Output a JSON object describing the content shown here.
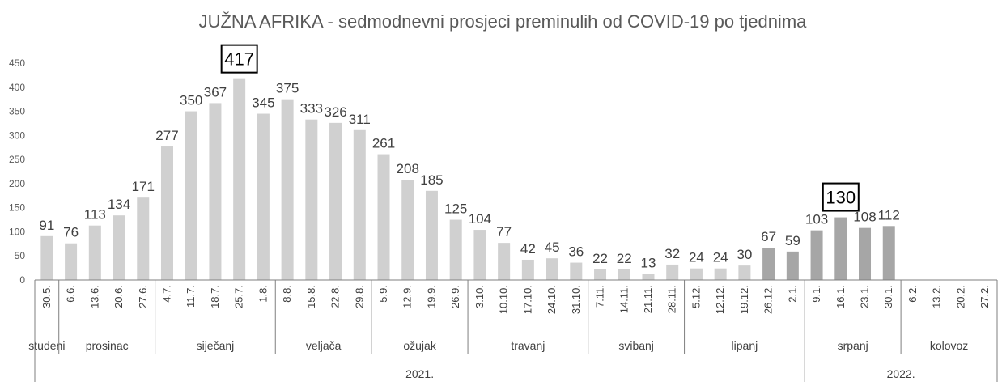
{
  "chart_data": {
    "type": "bar",
    "title": "JUŽNA AFRIKA - sedmodnevni prosjeci preminulih od COVID-19 po tjednima",
    "ylim": [
      0,
      450
    ],
    "yticks": [
      0,
      50,
      100,
      150,
      200,
      250,
      300,
      350,
      400,
      450
    ],
    "grid": false,
    "categories": [
      "30.5.",
      "6.6.",
      "13.6.",
      "20.6.",
      "27.6.",
      "4.7.",
      "11.7.",
      "18.7.",
      "25.7.",
      "1.8.",
      "8.8.",
      "15.8.",
      "22.8.",
      "29.8.",
      "5.9.",
      "12.9.",
      "19.9.",
      "26.9.",
      "3.10.",
      "10.10.",
      "17.10.",
      "24.10.",
      "31.10.",
      "7.11.",
      "14.11.",
      "21.11.",
      "28.11.",
      "5.12.",
      "12.12.",
      "19.12.",
      "26.12.",
      "2.1.",
      "9.1.",
      "16.1.",
      "23.1.",
      "30.1.",
      "6.2.",
      "13.2.",
      "20.2.",
      "27.2."
    ],
    "values": [
      91,
      76,
      113,
      134,
      171,
      277,
      350,
      367,
      417,
      345,
      375,
      333,
      326,
      311,
      261,
      208,
      185,
      125,
      104,
      77,
      42,
      45,
      36,
      22,
      22,
      13,
      32,
      24,
      24,
      30,
      67,
      59,
      103,
      130,
      108,
      112,
      null,
      null,
      null,
      null
    ],
    "highlighted": [
      8,
      33
    ],
    "colors": {
      "bar_light": "#d0d0d0",
      "bar_dark": "#a6a6a6",
      "axis": "#7f7f7f",
      "text": "#404040"
    },
    "dark_from_index": 30,
    "months": [
      {
        "label": "studeni",
        "start": 0,
        "end": 1
      },
      {
        "label": "prosinac",
        "start": 1,
        "end": 5
      },
      {
        "label": "siječanj",
        "start": 5,
        "end": 10
      },
      {
        "label": "veljača",
        "start": 10,
        "end": 14
      },
      {
        "label": "ožujak",
        "start": 14,
        "end": 18
      },
      {
        "label": "travanj",
        "start": 18,
        "end": 23
      },
      {
        "label": "svibanj",
        "start": 23,
        "end": 27
      },
      {
        "label": "lipanj",
        "start": 27,
        "end": 32
      },
      {
        "label": "srpanj",
        "start": 32,
        "end": 36
      },
      {
        "label": "kolovoz",
        "start": 36,
        "end": 40
      }
    ],
    "years": [
      {
        "label": "2021.",
        "start": 0,
        "end": 32
      },
      {
        "label": "2022.",
        "start": 32,
        "end": 40
      }
    ]
  }
}
